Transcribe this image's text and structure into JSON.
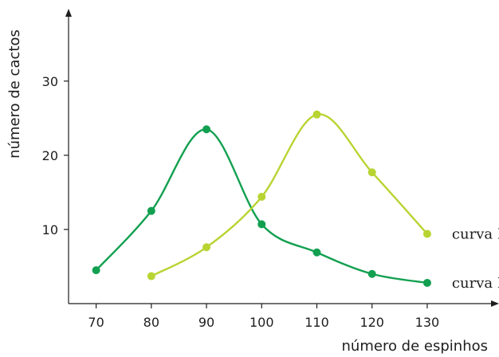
{
  "chart_data": {
    "type": "line",
    "x_ticks": [
      "70",
      "80",
      "90",
      "100",
      "110",
      "120",
      "130"
    ],
    "y_ticks": [
      "10",
      "20",
      "30"
    ],
    "xlabel": "número de espinhos",
    "ylabel": "número de cactos",
    "xlim": [
      65,
      142
    ],
    "ylim": [
      0,
      39
    ],
    "grid": false,
    "smooth": true,
    "series": [
      {
        "name": "curva I",
        "color": "#12a050",
        "x": [
          70,
          80,
          90,
          100,
          110,
          120,
          130
        ],
        "y": [
          4.5,
          12.5,
          23.5,
          10.7,
          6.9,
          4.0,
          2.8
        ]
      },
      {
        "name": "curva II",
        "color": "#b8d432",
        "x": [
          80,
          90,
          100,
          110,
          120,
          130
        ],
        "y": [
          3.7,
          7.6,
          14.4,
          25.5,
          17.7,
          9.4
        ]
      }
    ]
  }
}
